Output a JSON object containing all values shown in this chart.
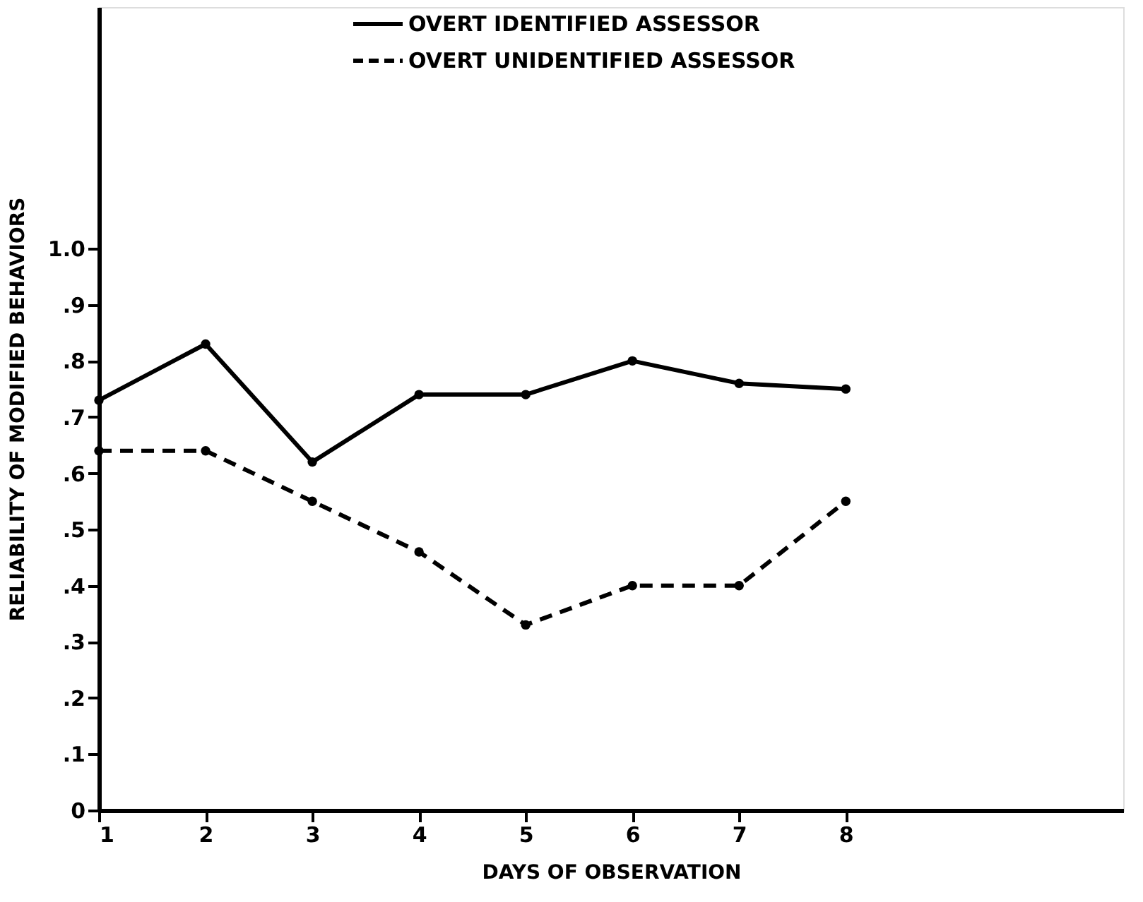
{
  "chart_data": {
    "type": "line",
    "xlabel": "DAYS OF OBSERVATION",
    "ylabel": "RELIABILITY OF MODIFIED BEHAVIORS",
    "x": [
      1,
      2,
      3,
      4,
      5,
      6,
      7,
      8
    ],
    "series": [
      {
        "name": "OVERT IDENTIFIED ASSESSOR",
        "color": "#000000",
        "line_style": "solid",
        "values": [
          0.73,
          0.83,
          0.62,
          0.74,
          0.74,
          0.8,
          0.76,
          0.75
        ]
      },
      {
        "name": "OVERT UNIDENTIFIED ASSESSOR",
        "color": "#000000",
        "line_style": "dashed",
        "values": [
          0.64,
          0.64,
          0.55,
          0.46,
          0.33,
          0.4,
          0.4,
          0.55
        ]
      }
    ],
    "xlim": [
      1,
      10.6
    ],
    "xticks": [
      1,
      2,
      3,
      4,
      5,
      6,
      7,
      8
    ],
    "ylim": [
      0,
      1.43
    ],
    "yticks": [
      0,
      {
        "value": 0.1,
        "label": ".1"
      },
      {
        "value": 0.2,
        "label": ".2"
      },
      {
        "value": 0.3,
        "label": ".3"
      },
      {
        "value": 0.4,
        "label": ".4"
      },
      {
        "value": 0.5,
        "label": ".5"
      },
      {
        "value": 0.6,
        "label": ".6"
      },
      {
        "value": 0.7,
        "label": ".7"
      },
      {
        "value": 0.8,
        "label": ".8"
      },
      {
        "value": 0.9,
        "label": ".9"
      },
      {
        "value": 1.0,
        "label": "1.0"
      }
    ],
    "grid": false,
    "legend": "top",
    "marker": "circle"
  }
}
